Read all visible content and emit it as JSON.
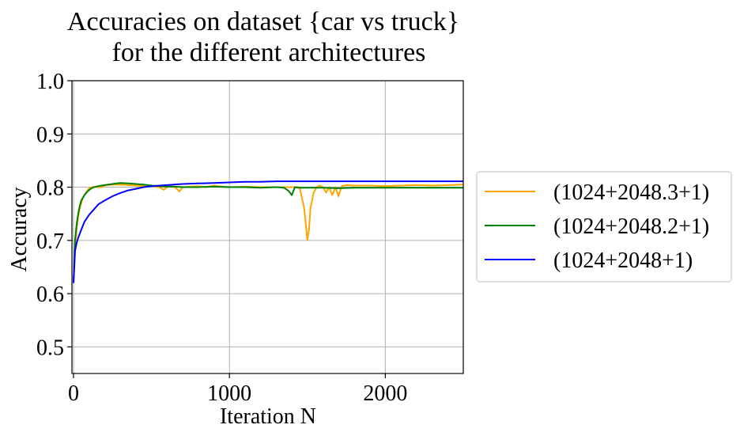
{
  "chart_data": {
    "type": "line",
    "title_lines": [
      "Accuracies on dataset {car vs truck}",
      "for the different architectures"
    ],
    "xlabel": "Iteration N",
    "ylabel": "Accuracy",
    "xlim": [
      -10,
      2500
    ],
    "ylim": [
      0.45,
      1.0
    ],
    "xticks": [
      0,
      1000,
      2000
    ],
    "xtick_labels": [
      "0",
      "1000",
      "2000"
    ],
    "yticks": [
      0.5,
      0.6,
      0.7,
      0.8,
      0.9,
      1.0
    ],
    "ytick_labels": [
      "0.5",
      "0.6",
      "0.7",
      "0.8",
      "0.9",
      "1.0"
    ],
    "grid": true,
    "legend_position": "right-outside",
    "series": [
      {
        "name": "(1024+2048.3+1)",
        "color": "#FFA500",
        "x": [
          0,
          10,
          20,
          30,
          40,
          50,
          60,
          80,
          100,
          120,
          150,
          180,
          200,
          250,
          300,
          350,
          400,
          450,
          500,
          550,
          580,
          600,
          620,
          650,
          680,
          700,
          750,
          800,
          850,
          900,
          950,
          1000,
          1100,
          1200,
          1300,
          1400,
          1450,
          1480,
          1500,
          1510,
          1520,
          1540,
          1560,
          1580,
          1600,
          1620,
          1640,
          1660,
          1680,
          1700,
          1720,
          1750,
          1800,
          1900,
          2000,
          2100,
          2200,
          2300,
          2400,
          2500
        ],
        "y": [
          0.62,
          0.68,
          0.72,
          0.745,
          0.76,
          0.77,
          0.78,
          0.79,
          0.798,
          0.8,
          0.8,
          0.8,
          0.803,
          0.805,
          0.805,
          0.804,
          0.803,
          0.802,
          0.802,
          0.8,
          0.795,
          0.8,
          0.802,
          0.8,
          0.792,
          0.8,
          0.801,
          0.802,
          0.8,
          0.803,
          0.801,
          0.8,
          0.801,
          0.8,
          0.8,
          0.8,
          0.8,
          0.76,
          0.7,
          0.72,
          0.76,
          0.79,
          0.8,
          0.803,
          0.8,
          0.79,
          0.8,
          0.785,
          0.8,
          0.783,
          0.802,
          0.804,
          0.803,
          0.803,
          0.802,
          0.803,
          0.804,
          0.803,
          0.804,
          0.805
        ]
      },
      {
        "name": "(1024+2048.2+1)",
        "color": "#008000",
        "x": [
          0,
          10,
          20,
          30,
          40,
          50,
          70,
          90,
          110,
          130,
          160,
          200,
          250,
          300,
          350,
          400,
          450,
          500,
          550,
          600,
          650,
          700,
          800,
          900,
          1000,
          1100,
          1200,
          1300,
          1350,
          1380,
          1400,
          1420,
          1440,
          1500,
          1600,
          1700,
          1800,
          1900,
          2000,
          2100,
          2200,
          2300,
          2400,
          2500
        ],
        "y": [
          0.62,
          0.7,
          0.73,
          0.75,
          0.765,
          0.775,
          0.785,
          0.792,
          0.797,
          0.8,
          0.802,
          0.804,
          0.806,
          0.808,
          0.807,
          0.806,
          0.805,
          0.803,
          0.802,
          0.801,
          0.801,
          0.8,
          0.8,
          0.801,
          0.8,
          0.8,
          0.799,
          0.8,
          0.799,
          0.793,
          0.785,
          0.8,
          0.799,
          0.799,
          0.799,
          0.798,
          0.799,
          0.799,
          0.799,
          0.799,
          0.799,
          0.799,
          0.799,
          0.799
        ]
      },
      {
        "name": "(1024+2048+1)",
        "color": "#0000FF",
        "x": [
          0,
          10,
          20,
          30,
          50,
          70,
          100,
          130,
          160,
          200,
          250,
          300,
          350,
          400,
          450,
          500,
          600,
          700,
          800,
          900,
          1000,
          1100,
          1200,
          1300,
          1400,
          1500,
          1600,
          1700,
          1800,
          1900,
          2000,
          2100,
          2200,
          2300,
          2400,
          2500
        ],
        "y": [
          0.62,
          0.68,
          0.695,
          0.705,
          0.72,
          0.735,
          0.748,
          0.758,
          0.768,
          0.775,
          0.783,
          0.789,
          0.794,
          0.797,
          0.8,
          0.802,
          0.804,
          0.806,
          0.807,
          0.808,
          0.809,
          0.81,
          0.81,
          0.811,
          0.811,
          0.811,
          0.811,
          0.811,
          0.811,
          0.811,
          0.811,
          0.811,
          0.811,
          0.811,
          0.811,
          0.811
        ]
      }
    ]
  }
}
